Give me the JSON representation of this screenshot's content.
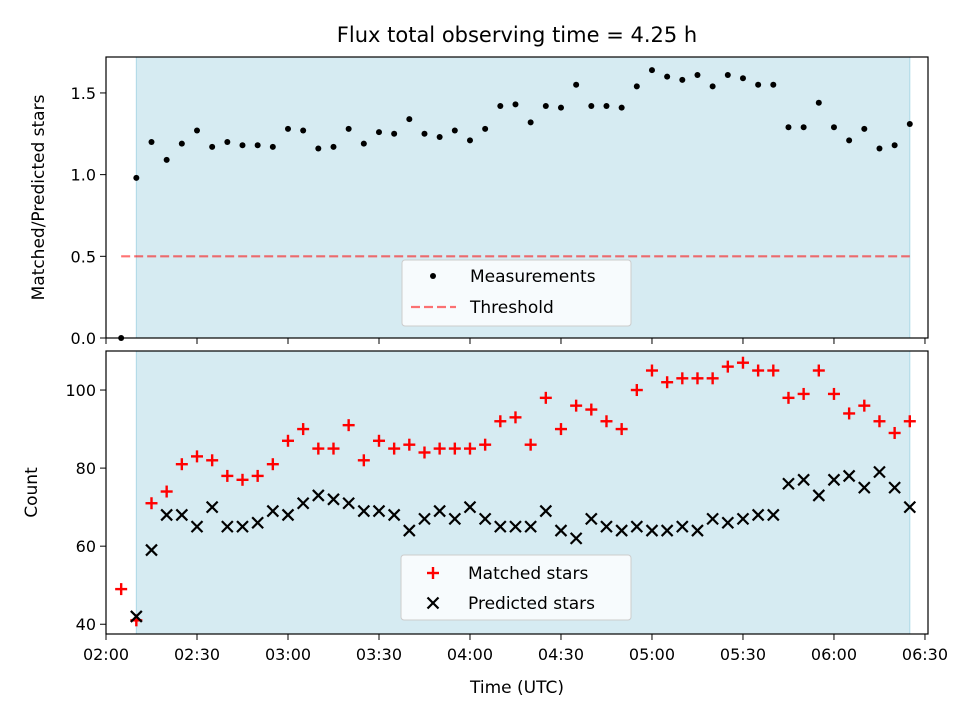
{
  "title": "Flux total observing time = 4.25 h",
  "colors": {
    "shade": "#add8e6",
    "measurement": "#000000",
    "threshold": "#ff0000",
    "matched": "#ff0000",
    "predicted": "#000000"
  },
  "chart_data": [
    {
      "type": "scatter",
      "panel": "top",
      "ylabel": "Matched/Predicted stars",
      "xlim": [
        "02:00",
        "06:31"
      ],
      "ylim": [
        0.0,
        1.72
      ],
      "yticks": [
        "0.0",
        "0.5",
        "1.0",
        "1.5"
      ],
      "ytick_values": [
        0.0,
        0.5,
        1.0,
        1.5
      ],
      "shaded_x": [
        "02:10",
        "06:25"
      ],
      "legend": {
        "position": "lower center",
        "entries": [
          "Measurements",
          "Threshold"
        ]
      },
      "series": [
        {
          "name": "Measurements",
          "marker": "dot",
          "x": [
            "02:05",
            "02:10",
            "02:15",
            "02:20",
            "02:25",
            "02:30",
            "02:35",
            "02:40",
            "02:45",
            "02:50",
            "02:55",
            "03:00",
            "03:05",
            "03:10",
            "03:15",
            "03:20",
            "03:25",
            "03:30",
            "03:35",
            "03:40",
            "03:45",
            "03:50",
            "03:55",
            "04:00",
            "04:05",
            "04:10",
            "04:15",
            "04:20",
            "04:25",
            "04:30",
            "04:35",
            "04:40",
            "04:45",
            "04:50",
            "04:55",
            "05:00",
            "05:05",
            "05:10",
            "05:15",
            "05:20",
            "05:25",
            "05:30",
            "05:35",
            "05:40",
            "05:45",
            "05:50",
            "05:55",
            "06:00",
            "06:05",
            "06:10",
            "06:15",
            "06:20",
            "06:25"
          ],
          "values": [
            0.0,
            0.98,
            1.2,
            1.09,
            1.19,
            1.27,
            1.17,
            1.2,
            1.18,
            1.18,
            1.17,
            1.28,
            1.27,
            1.16,
            1.17,
            1.28,
            1.19,
            1.26,
            1.25,
            1.34,
            1.25,
            1.23,
            1.27,
            1.21,
            1.28,
            1.42,
            1.43,
            1.32,
            1.42,
            1.41,
            1.55,
            1.42,
            1.42,
            1.41,
            1.54,
            1.64,
            1.6,
            1.58,
            1.61,
            1.54,
            1.61,
            1.59,
            1.55,
            1.55,
            1.29,
            1.29,
            1.44,
            1.29,
            1.21,
            1.28,
            1.16,
            1.18,
            1.31
          ]
        },
        {
          "name": "Threshold",
          "type": "hline",
          "value": 0.5,
          "x_range": [
            "02:05",
            "06:25"
          ]
        }
      ]
    },
    {
      "type": "scatter",
      "panel": "bottom",
      "ylabel": "Count",
      "xlabel": "Time (UTC)",
      "xticks": [
        "02:00",
        "02:30",
        "03:00",
        "03:30",
        "04:00",
        "04:30",
        "05:00",
        "05:30",
        "06:00",
        "06:30"
      ],
      "xlim": [
        "02:00",
        "06:31"
      ],
      "ylim": [
        37.5,
        110
      ],
      "yticks": [
        "40",
        "60",
        "80",
        "100"
      ],
      "ytick_values": [
        40,
        60,
        80,
        100
      ],
      "shaded_x": [
        "02:10",
        "06:25"
      ],
      "legend": {
        "position": "lower center",
        "entries": [
          "Matched stars",
          "Predicted stars"
        ]
      },
      "x": [
        "02:05",
        "02:10",
        "02:15",
        "02:20",
        "02:25",
        "02:30",
        "02:35",
        "02:40",
        "02:45",
        "02:50",
        "02:55",
        "03:00",
        "03:05",
        "03:10",
        "03:15",
        "03:20",
        "03:25",
        "03:30",
        "03:35",
        "03:40",
        "03:45",
        "03:50",
        "03:55",
        "04:00",
        "04:05",
        "04:10",
        "04:15",
        "04:20",
        "04:25",
        "04:30",
        "04:35",
        "04:40",
        "04:45",
        "04:50",
        "04:55",
        "05:00",
        "05:05",
        "05:10",
        "05:15",
        "05:20",
        "05:25",
        "05:30",
        "05:35",
        "05:40",
        "05:45",
        "05:50",
        "05:55",
        "06:00",
        "06:05",
        "06:10",
        "06:15",
        "06:20",
        "06:25"
      ],
      "series": [
        {
          "name": "Matched stars",
          "marker": "plus",
          "values": [
            49,
            41,
            71,
            74,
            81,
            83,
            82,
            78,
            77,
            78,
            81,
            87,
            90,
            85,
            85,
            91,
            82,
            87,
            85,
            86,
            84,
            85,
            85,
            85,
            86,
            92,
            93,
            86,
            98,
            90,
            96,
            95,
            92,
            90,
            100,
            105,
            102,
            103,
            103,
            103,
            106,
            107,
            105,
            105,
            98,
            99,
            105,
            99,
            94,
            96,
            92,
            89,
            92
          ]
        },
        {
          "name": "Predicted stars",
          "marker": "x",
          "values": [
            null,
            42,
            59,
            68,
            68,
            65,
            70,
            65,
            65,
            66,
            69,
            68,
            71,
            73,
            72,
            71,
            69,
            69,
            68,
            64,
            67,
            69,
            67,
            70,
            67,
            65,
            65,
            65,
            69,
            64,
            62,
            67,
            65,
            64,
            65,
            64,
            64,
            65,
            64,
            67,
            66,
            67,
            68,
            68,
            76,
            77,
            73,
            77,
            78,
            75,
            79,
            75,
            70
          ]
        }
      ]
    }
  ]
}
